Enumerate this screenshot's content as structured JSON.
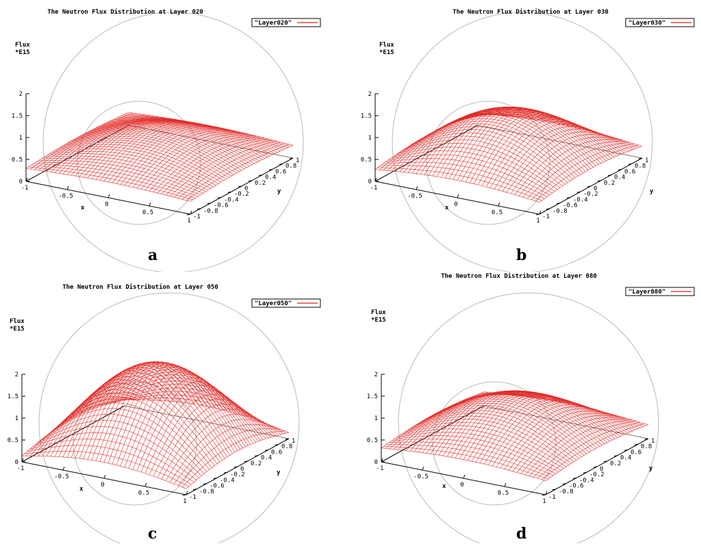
{
  "chart_data": [
    {
      "type": "surface",
      "title": "The Neutron Flux Distribution at Layer 020",
      "legend": "\"Layer020\"",
      "caption": "a",
      "zlabel": "Flux",
      "zscale": "*E15",
      "xlabel": "x",
      "ylabel": "y",
      "xticks": [
        "-1",
        "-0.5",
        "0",
        "0.5",
        "1"
      ],
      "yticks": [
        "-1",
        "-0.8",
        "-0.6",
        "-0.4",
        "-0.2",
        "0",
        "0.2",
        "0.4",
        "0.6",
        "0.8",
        "1"
      ],
      "zticks": [
        "0",
        "0.5",
        "1",
        "1.5",
        "2"
      ],
      "xlim": [
        -1,
        1
      ],
      "ylim": [
        -1,
        1
      ],
      "zlim": [
        0,
        2
      ],
      "surface": {
        "base": 0.28,
        "peak": 0.85,
        "exponent": 1.0
      },
      "color": "#e0201c"
    },
    {
      "type": "surface",
      "title": "The Neutron Flux Distribution at Layer 030",
      "legend": "\"Layer030\"",
      "caption": "b",
      "zlabel": "Flux",
      "zscale": "*E15",
      "xlabel": "x",
      "ylabel": "y",
      "xticks": [
        "-1",
        "-0.5",
        "0",
        "0.5",
        "1"
      ],
      "yticks": [
        "-1",
        "-0.8",
        "-0.6",
        "-0.4",
        "-0.2",
        "0",
        "0.2",
        "0.4",
        "0.6",
        "0.8",
        "1"
      ],
      "zticks": [
        "0",
        "0.5",
        "1",
        "1.5",
        "2"
      ],
      "xlim": [
        -1,
        1
      ],
      "ylim": [
        -1,
        1
      ],
      "zlim": [
        0,
        2
      ],
      "surface": {
        "base": 0.25,
        "peak": 1.3,
        "exponent": 1.0
      },
      "color": "#e0201c"
    },
    {
      "type": "surface",
      "title": "The Neutron Flux Distribution at Layer 050",
      "legend": "\"Layer050\"",
      "caption": "c",
      "zlabel": "Flux",
      "zscale": "*E15",
      "xlabel": "x",
      "ylabel": "y",
      "xticks": [
        "-1",
        "-0.5",
        "0",
        "0.5",
        "1"
      ],
      "yticks": [
        "-1",
        "-0.8",
        "-0.6",
        "-0.4",
        "-0.2",
        "0",
        "0.2",
        "0.4",
        "0.6",
        "0.8",
        "1"
      ],
      "zticks": [
        "0",
        "0.5",
        "1",
        "1.5",
        "2"
      ],
      "xlim": [
        -1,
        1
      ],
      "ylim": [
        -1,
        1
      ],
      "zlim": [
        0,
        2
      ],
      "surface": {
        "base": 0.1,
        "peak": 1.95,
        "exponent": 1.0
      },
      "color": "#e0201c"
    },
    {
      "type": "surface",
      "title": "The Neutron Flux Distribution at Layer 080",
      "legend": "\"Layer080\"",
      "caption": "d",
      "zlabel": "Flux",
      "zscale": "*E15",
      "xlabel": "x",
      "ylabel": "y",
      "xticks": [
        "-1",
        "-0.5",
        "0",
        "0.5",
        "1"
      ],
      "yticks": [
        "-1",
        "-0.8",
        "-0.6",
        "-0.4",
        "-0.2",
        "0",
        "0.2",
        "0.4",
        "0.6",
        "0.8",
        "1"
      ],
      "zticks": [
        "0",
        "0.5",
        "1",
        "1.5",
        "2"
      ],
      "xlim": [
        -1,
        1
      ],
      "ylim": [
        -1,
        1
      ],
      "zlim": [
        0,
        2
      ],
      "surface": {
        "base": 0.3,
        "peak": 1.2,
        "exponent": 1.0
      },
      "color": "#e0201c"
    }
  ]
}
